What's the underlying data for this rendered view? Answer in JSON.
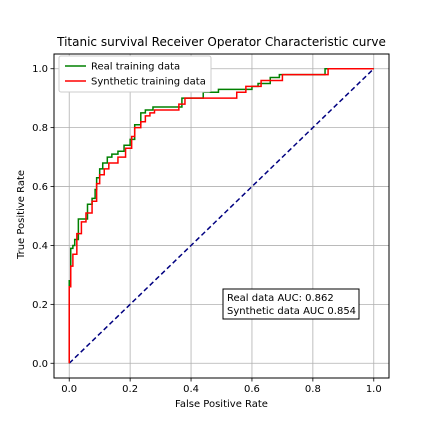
{
  "chart_data": {
    "type": "line",
    "title": "Titanic survival Receiver Operator Characteristic curve",
    "xlabel": "False Positive Rate",
    "ylabel": "True Positive Rate",
    "xlim": [
      -0.05,
      1.05
    ],
    "ylim": [
      -0.05,
      1.05
    ],
    "xticks": [
      "0.0",
      "0.2",
      "0.4",
      "0.6",
      "0.8",
      "1.0"
    ],
    "yticks": [
      "0.0",
      "0.2",
      "0.4",
      "0.6",
      "0.8",
      "1.0"
    ],
    "grid": true,
    "legend_position": "upper-left",
    "series": [
      {
        "name": "Real training data",
        "color": "#008000",
        "x": [
          0.0,
          0.0,
          0.005,
          0.005,
          0.012,
          0.012,
          0.018,
          0.018,
          0.03,
          0.03,
          0.06,
          0.06,
          0.075,
          0.075,
          0.085,
          0.085,
          0.09,
          0.09,
          0.1,
          0.1,
          0.11,
          0.11,
          0.125,
          0.125,
          0.14,
          0.14,
          0.16,
          0.16,
          0.18,
          0.18,
          0.2,
          0.2,
          0.215,
          0.215,
          0.235,
          0.235,
          0.25,
          0.25,
          0.275,
          0.275,
          0.37,
          0.37,
          0.44,
          0.44,
          0.49,
          0.49,
          0.6,
          0.6,
          0.62,
          0.62,
          0.66,
          0.66,
          0.69,
          0.69,
          0.84,
          0.84,
          1.0
        ],
        "y": [
          0.0,
          0.28,
          0.28,
          0.39,
          0.39,
          0.4,
          0.4,
          0.42,
          0.42,
          0.49,
          0.49,
          0.54,
          0.54,
          0.56,
          0.56,
          0.59,
          0.59,
          0.63,
          0.63,
          0.66,
          0.66,
          0.68,
          0.68,
          0.7,
          0.7,
          0.71,
          0.71,
          0.72,
          0.72,
          0.74,
          0.74,
          0.76,
          0.76,
          0.81,
          0.81,
          0.85,
          0.85,
          0.86,
          0.86,
          0.87,
          0.87,
          0.9,
          0.9,
          0.92,
          0.92,
          0.93,
          0.93,
          0.94,
          0.94,
          0.95,
          0.95,
          0.97,
          0.97,
          0.98,
          0.98,
          1.0,
          1.0
        ]
      },
      {
        "name": "Synthetic training data",
        "color": "#ff0000",
        "x": [
          0.0,
          0.0,
          0.005,
          0.005,
          0.012,
          0.012,
          0.025,
          0.025,
          0.04,
          0.04,
          0.055,
          0.055,
          0.075,
          0.075,
          0.09,
          0.09,
          0.1,
          0.1,
          0.115,
          0.115,
          0.13,
          0.13,
          0.16,
          0.16,
          0.185,
          0.185,
          0.205,
          0.205,
          0.215,
          0.215,
          0.235,
          0.235,
          0.25,
          0.25,
          0.265,
          0.265,
          0.28,
          0.28,
          0.36,
          0.36,
          0.38,
          0.38,
          0.55,
          0.55,
          0.58,
          0.58,
          0.63,
          0.63,
          0.7,
          0.7,
          0.85,
          0.85,
          1.0
        ],
        "y": [
          0.0,
          0.26,
          0.26,
          0.33,
          0.33,
          0.37,
          0.37,
          0.44,
          0.44,
          0.48,
          0.48,
          0.51,
          0.51,
          0.55,
          0.55,
          0.61,
          0.61,
          0.64,
          0.64,
          0.66,
          0.66,
          0.68,
          0.68,
          0.7,
          0.7,
          0.73,
          0.73,
          0.77,
          0.77,
          0.8,
          0.8,
          0.82,
          0.82,
          0.84,
          0.84,
          0.85,
          0.85,
          0.86,
          0.86,
          0.88,
          0.88,
          0.9,
          0.9,
          0.92,
          0.92,
          0.94,
          0.94,
          0.96,
          0.96,
          0.98,
          0.98,
          1.0,
          1.0
        ]
      }
    ],
    "reference_line": {
      "color": "#000080",
      "style": "dashed",
      "x": [
        0,
        1
      ],
      "y": [
        0,
        1
      ]
    },
    "annotation": {
      "line1": "Real data AUC: 0.862",
      "line2": "Synthetic data AUC 0.854"
    }
  }
}
